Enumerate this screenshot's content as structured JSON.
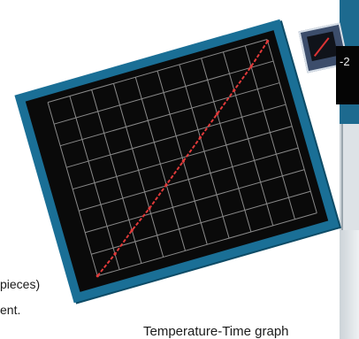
{
  "caption": "Temperature-Time graph",
  "side_text": {
    "line1": "pieces)",
    "line2": "ent."
  },
  "readout": {
    "value": "-2"
  },
  "colors": {
    "frame": "#1a6f96",
    "plot_background": "#0a0a0a",
    "grid": "#8a8a8a",
    "trace": "#e23a3a"
  },
  "chart_data": {
    "type": "line",
    "x": [
      0,
      1,
      2,
      3,
      4,
      5,
      6,
      7,
      8,
      9,
      10
    ],
    "series": [
      {
        "values": [
          0,
          0.9,
          1.9,
          2.8,
          3.8,
          4.8,
          5.8,
          6.8,
          7.8,
          8.8,
          9.9
        ]
      }
    ],
    "xlim": [
      0,
      10
    ],
    "ylim": [
      0,
      10
    ],
    "grid": true
  }
}
